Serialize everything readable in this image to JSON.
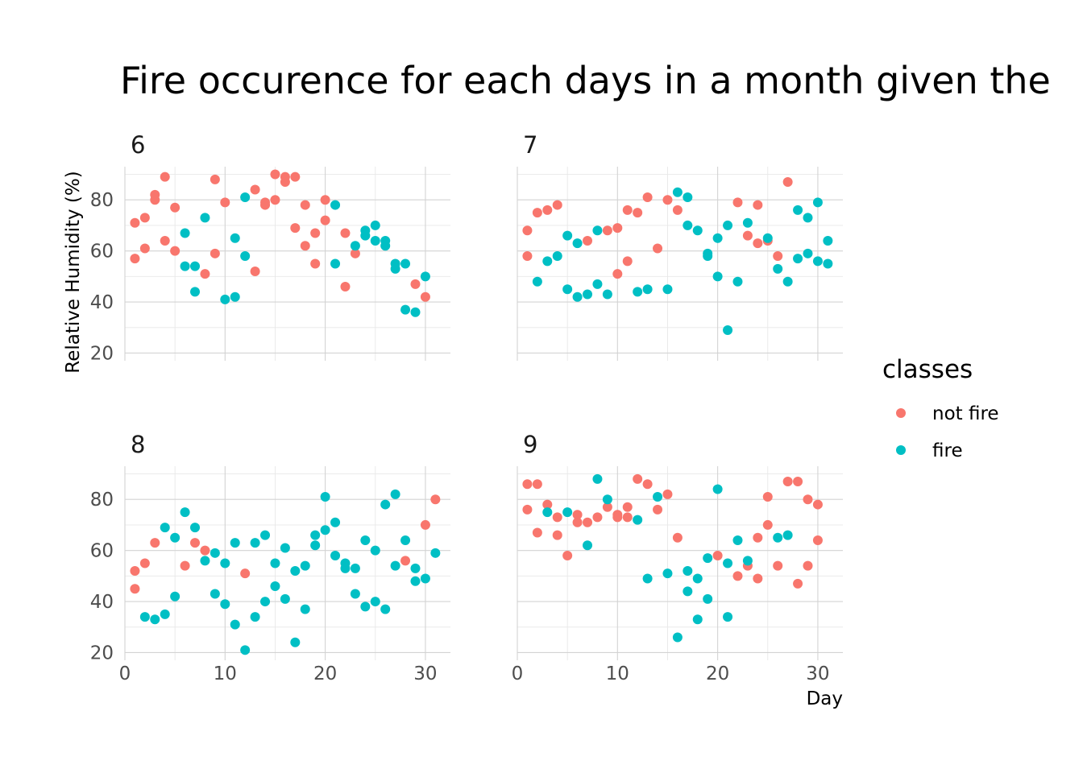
{
  "chart_data": {
    "type": "scatter",
    "title": "Fire occurence for each days in a month given the",
    "xlabel": "Day",
    "ylabel": "Relative Humidity (%)",
    "xlim": [
      0,
      32.5
    ],
    "ylim": [
      17,
      93
    ],
    "x_ticks": [
      0,
      10,
      20,
      30
    ],
    "y_ticks": [
      20,
      40,
      60,
      80
    ],
    "grid": true,
    "legend": {
      "title": "classes",
      "position": "right",
      "entries": [
        {
          "key": "not_fire",
          "label": "not fire",
          "color": "#F8766D"
        },
        {
          "key": "fire",
          "label": "fire",
          "color": "#00BFC4"
        }
      ]
    },
    "panels": [
      {
        "label": "6",
        "points": {
          "not_fire": [
            [
              1,
              57
            ],
            [
              1,
              71
            ],
            [
              2,
              61
            ],
            [
              2,
              73
            ],
            [
              3,
              80
            ],
            [
              3,
              82
            ],
            [
              4,
              64
            ],
            [
              4,
              89
            ],
            [
              5,
              60
            ],
            [
              5,
              77
            ],
            [
              8,
              51
            ],
            [
              9,
              59
            ],
            [
              9,
              88
            ],
            [
              10,
              79
            ],
            [
              13,
              52
            ],
            [
              13,
              84
            ],
            [
              14,
              78
            ],
            [
              14,
              79
            ],
            [
              15,
              80
            ],
            [
              15,
              90
            ],
            [
              16,
              87
            ],
            [
              16,
              89
            ],
            [
              17,
              69
            ],
            [
              17,
              89
            ],
            [
              18,
              62
            ],
            [
              18,
              78
            ],
            [
              19,
              55
            ],
            [
              19,
              67
            ],
            [
              20,
              72
            ],
            [
              20,
              80
            ],
            [
              22,
              46
            ],
            [
              22,
              67
            ],
            [
              23,
              59
            ],
            [
              29,
              47
            ],
            [
              30,
              42
            ]
          ],
          "fire": [
            [
              6,
              54
            ],
            [
              6,
              67
            ],
            [
              7,
              44
            ],
            [
              7,
              54
            ],
            [
              8,
              73
            ],
            [
              10,
              41
            ],
            [
              11,
              42
            ],
            [
              11,
              65
            ],
            [
              12,
              58
            ],
            [
              12,
              81
            ],
            [
              21,
              55
            ],
            [
              21,
              78
            ],
            [
              23,
              62
            ],
            [
              24,
              66
            ],
            [
              24,
              68
            ],
            [
              25,
              64
            ],
            [
              25,
              70
            ],
            [
              26,
              62
            ],
            [
              26,
              64
            ],
            [
              27,
              53
            ],
            [
              27,
              55
            ],
            [
              28,
              37
            ],
            [
              28,
              55
            ],
            [
              29,
              36
            ],
            [
              30,
              50
            ]
          ]
        }
      },
      {
        "label": "7",
        "points": {
          "not_fire": [
            [
              1,
              58
            ],
            [
              1,
              68
            ],
            [
              2,
              75
            ],
            [
              3,
              76
            ],
            [
              4,
              78
            ],
            [
              7,
              64
            ],
            [
              9,
              68
            ],
            [
              10,
              51
            ],
            [
              10,
              69
            ],
            [
              11,
              56
            ],
            [
              11,
              76
            ],
            [
              12,
              75
            ],
            [
              13,
              81
            ],
            [
              14,
              61
            ],
            [
              15,
              80
            ],
            [
              16,
              76
            ],
            [
              22,
              79
            ],
            [
              23,
              66
            ],
            [
              24,
              63
            ],
            [
              24,
              78
            ],
            [
              25,
              64
            ],
            [
              26,
              58
            ],
            [
              27,
              87
            ]
          ],
          "fire": [
            [
              2,
              48
            ],
            [
              3,
              56
            ],
            [
              4,
              58
            ],
            [
              5,
              45
            ],
            [
              5,
              66
            ],
            [
              6,
              42
            ],
            [
              6,
              63
            ],
            [
              7,
              43
            ],
            [
              8,
              47
            ],
            [
              8,
              68
            ],
            [
              9,
              43
            ],
            [
              12,
              44
            ],
            [
              13,
              45
            ],
            [
              15,
              45
            ],
            [
              16,
              83
            ],
            [
              17,
              70
            ],
            [
              17,
              81
            ],
            [
              18,
              68
            ],
            [
              19,
              58
            ],
            [
              19,
              59
            ],
            [
              20,
              50
            ],
            [
              20,
              65
            ],
            [
              21,
              29
            ],
            [
              21,
              70
            ],
            [
              22,
              48
            ],
            [
              23,
              71
            ],
            [
              25,
              65
            ],
            [
              26,
              53
            ],
            [
              27,
              48
            ],
            [
              28,
              57
            ],
            [
              28,
              76
            ],
            [
              29,
              59
            ],
            [
              29,
              73
            ],
            [
              30,
              56
            ],
            [
              30,
              79
            ],
            [
              31,
              55
            ],
            [
              31,
              64
            ]
          ]
        }
      },
      {
        "label": "8",
        "points": {
          "not_fire": [
            [
              1,
              45
            ],
            [
              1,
              52
            ],
            [
              2,
              55
            ],
            [
              3,
              63
            ],
            [
              6,
              54
            ],
            [
              7,
              63
            ],
            [
              8,
              60
            ],
            [
              12,
              51
            ],
            [
              28,
              56
            ],
            [
              30,
              70
            ],
            [
              31,
              80
            ]
          ],
          "fire": [
            [
              2,
              34
            ],
            [
              3,
              33
            ],
            [
              4,
              35
            ],
            [
              4,
              69
            ],
            [
              5,
              42
            ],
            [
              5,
              65
            ],
            [
              6,
              75
            ],
            [
              7,
              69
            ],
            [
              8,
              56
            ],
            [
              9,
              43
            ],
            [
              9,
              59
            ],
            [
              10,
              39
            ],
            [
              10,
              55
            ],
            [
              11,
              31
            ],
            [
              11,
              63
            ],
            [
              12,
              21
            ],
            [
              13,
              34
            ],
            [
              13,
              63
            ],
            [
              14,
              40
            ],
            [
              14,
              66
            ],
            [
              15,
              46
            ],
            [
              15,
              55
            ],
            [
              16,
              41
            ],
            [
              16,
              61
            ],
            [
              17,
              24
            ],
            [
              17,
              52
            ],
            [
              18,
              37
            ],
            [
              18,
              54
            ],
            [
              19,
              62
            ],
            [
              19,
              66
            ],
            [
              20,
              68
            ],
            [
              20,
              81
            ],
            [
              21,
              58
            ],
            [
              21,
              71
            ],
            [
              22,
              53
            ],
            [
              22,
              55
            ],
            [
              23,
              43
            ],
            [
              23,
              53
            ],
            [
              24,
              38
            ],
            [
              24,
              64
            ],
            [
              25,
              40
            ],
            [
              25,
              60
            ],
            [
              26,
              37
            ],
            [
              26,
              78
            ],
            [
              27,
              54
            ],
            [
              27,
              82
            ],
            [
              28,
              64
            ],
            [
              29,
              48
            ],
            [
              29,
              53
            ],
            [
              30,
              49
            ],
            [
              31,
              59
            ]
          ]
        }
      },
      {
        "label": "9",
        "points": {
          "not_fire": [
            [
              1,
              76
            ],
            [
              1,
              86
            ],
            [
              2,
              67
            ],
            [
              2,
              86
            ],
            [
              3,
              78
            ],
            [
              4,
              66
            ],
            [
              4,
              73
            ],
            [
              5,
              58
            ],
            [
              6,
              71
            ],
            [
              6,
              74
            ],
            [
              7,
              71
            ],
            [
              8,
              73
            ],
            [
              9,
              77
            ],
            [
              10,
              73
            ],
            [
              10,
              74
            ],
            [
              11,
              73
            ],
            [
              11,
              77
            ],
            [
              12,
              88
            ],
            [
              13,
              86
            ],
            [
              14,
              76
            ],
            [
              15,
              82
            ],
            [
              16,
              65
            ],
            [
              20,
              58
            ],
            [
              22,
              50
            ],
            [
              23,
              54
            ],
            [
              24,
              49
            ],
            [
              24,
              65
            ],
            [
              25,
              70
            ],
            [
              25,
              81
            ],
            [
              26,
              54
            ],
            [
              27,
              87
            ],
            [
              28,
              47
            ],
            [
              28,
              87
            ],
            [
              29,
              54
            ],
            [
              29,
              80
            ],
            [
              30,
              64
            ],
            [
              30,
              78
            ]
          ],
          "fire": [
            [
              3,
              75
            ],
            [
              5,
              75
            ],
            [
              7,
              62
            ],
            [
              8,
              88
            ],
            [
              9,
              80
            ],
            [
              12,
              72
            ],
            [
              13,
              49
            ],
            [
              14,
              81
            ],
            [
              15,
              51
            ],
            [
              16,
              26
            ],
            [
              17,
              44
            ],
            [
              17,
              52
            ],
            [
              18,
              33
            ],
            [
              18,
              49
            ],
            [
              19,
              41
            ],
            [
              19,
              57
            ],
            [
              20,
              84
            ],
            [
              21,
              34
            ],
            [
              21,
              55
            ],
            [
              22,
              64
            ],
            [
              23,
              56
            ],
            [
              26,
              65
            ],
            [
              27,
              66
            ]
          ]
        }
      }
    ]
  }
}
